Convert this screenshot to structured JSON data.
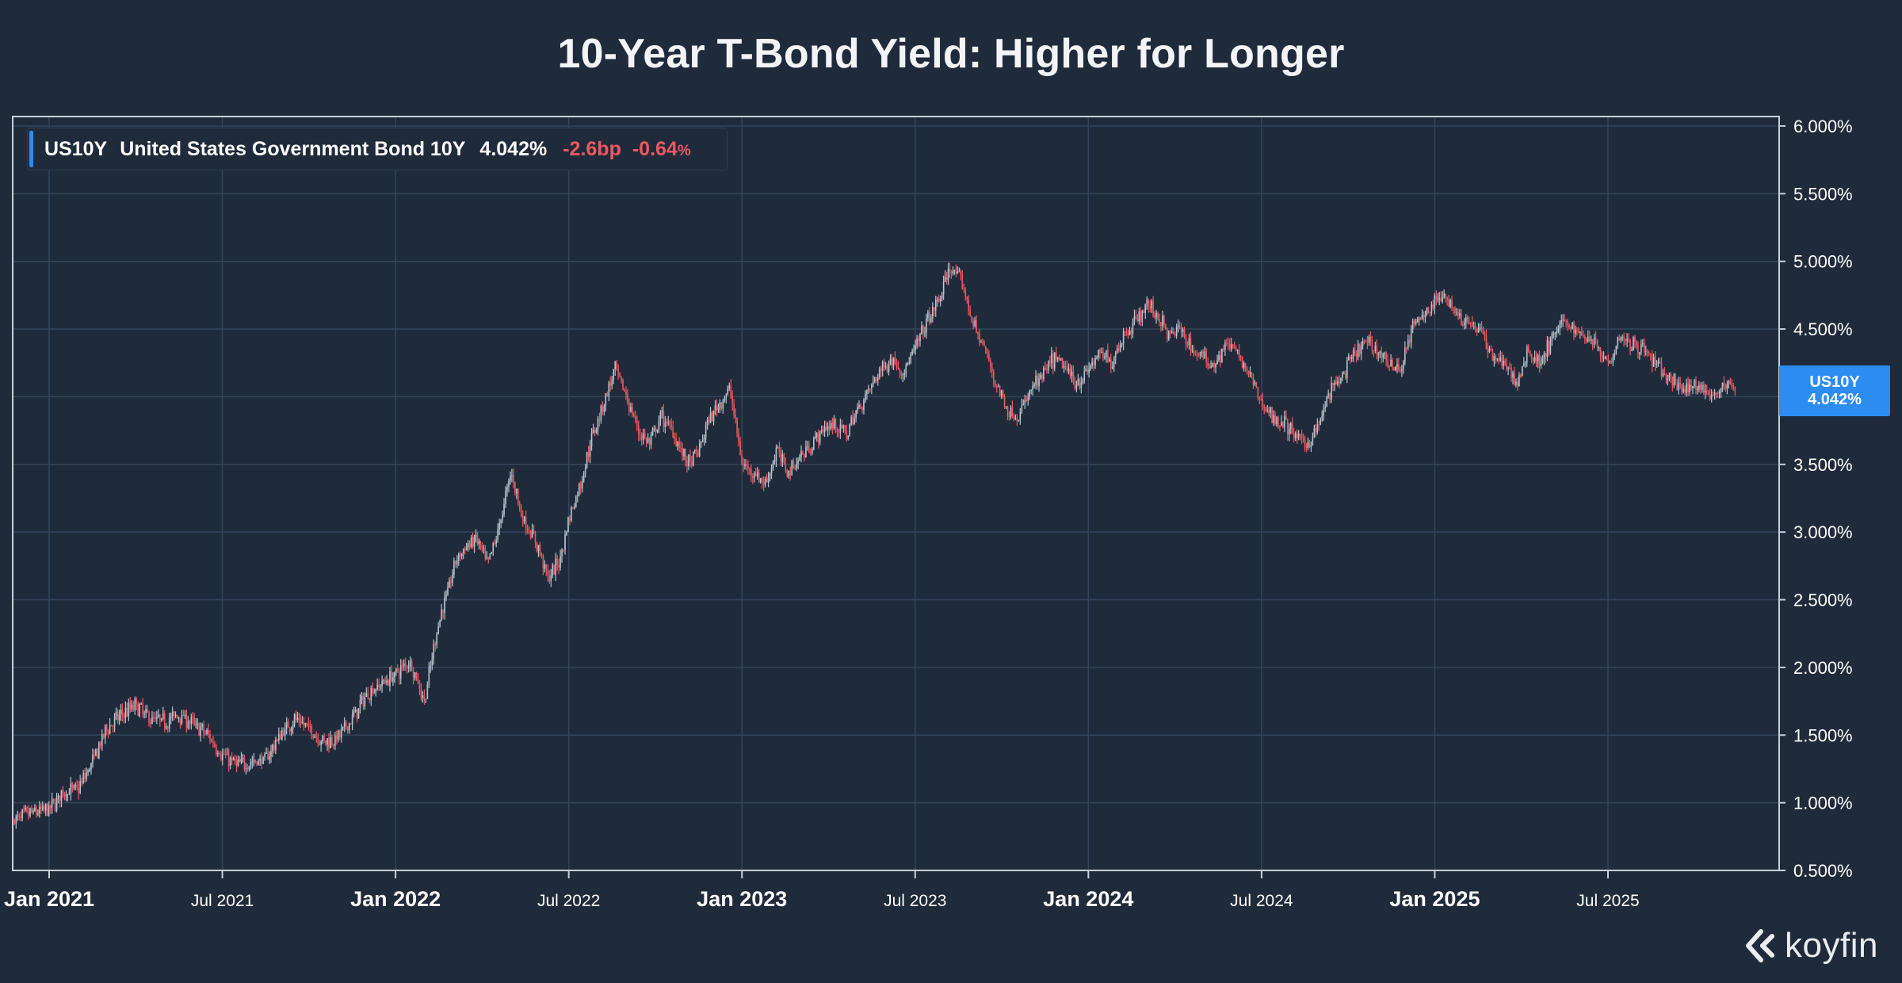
{
  "chart_data": {
    "type": "candlestick",
    "title": "10-Year T-Bond Yield: Higher for Longer",
    "legend": {
      "symbol": "US10Y",
      "name": "United States Government Bond 10Y",
      "value": "4.042%",
      "change_bp": "-2.6bp",
      "change_pct": "-0.64",
      "pct_sign": "%"
    },
    "last_value_label": {
      "symbol": "US10Y",
      "value": "4.042%"
    },
    "y_axis": {
      "ylim": [
        0.5,
        6.0
      ],
      "ticks": [
        6.0,
        5.5,
        5.0,
        4.5,
        4.0,
        3.5,
        3.0,
        2.5,
        2.0,
        1.5,
        1.0,
        0.5
      ],
      "tick_labels": [
        "6.000%",
        "5.500%",
        "5.000%",
        "4.500%",
        "4.000%",
        "3.500%",
        "3.000%",
        "2.500%",
        "2.000%",
        "1.500%",
        "1.000%",
        "0.500%"
      ]
    },
    "x_axis": {
      "range": [
        "Nov 2020",
        "Nov 2025"
      ],
      "ticks": [
        {
          "label": "Jan 2021",
          "month": 2,
          "major": true
        },
        {
          "label": "Jul 2021",
          "month": 8,
          "major": false
        },
        {
          "label": "Jan 2022",
          "month": 14,
          "major": true
        },
        {
          "label": "Jul 2022",
          "month": 20,
          "major": false
        },
        {
          "label": "Jan 2023",
          "month": 26,
          "major": true
        },
        {
          "label": "Jul 2023",
          "month": 32,
          "major": false
        },
        {
          "label": "Jan 2024",
          "month": 38,
          "major": true
        },
        {
          "label": "Jul 2024",
          "month": 44,
          "major": false
        },
        {
          "label": "Jan 2025",
          "month": 50,
          "major": true
        },
        {
          "label": "Jul 2025",
          "month": 56,
          "major": false
        }
      ]
    },
    "series": [
      {
        "name": "US10Y",
        "x_months": [
          0.8,
          1.3,
          2.0,
          2.5,
          3.0,
          3.5,
          4.0,
          4.5,
          5.0,
          5.5,
          6.0,
          6.5,
          7.0,
          7.5,
          8.0,
          8.5,
          9.0,
          9.5,
          10.0,
          10.5,
          11.0,
          11.5,
          12.0,
          12.5,
          13.0,
          13.5,
          14.0,
          14.5,
          15.0,
          15.5,
          15.8,
          16.1,
          16.5,
          16.8,
          17.2,
          17.6,
          18.0,
          18.4,
          18.8,
          19.0,
          19.3,
          19.7,
          20.0,
          20.4,
          20.8,
          21.2,
          21.6,
          22.0,
          22.4,
          22.8,
          23.2,
          23.6,
          24.0,
          24.2,
          24.5,
          24.8,
          25.2,
          25.6,
          26.0,
          26.4,
          26.8,
          27.2,
          27.6,
          28.0,
          28.4,
          28.8,
          29.2,
          29.6,
          30.0,
          30.4,
          30.8,
          31.2,
          31.6,
          32.0,
          32.4,
          32.8,
          33.2,
          33.6,
          34.0,
          34.4,
          34.8,
          35.2,
          35.6,
          36.0,
          36.4,
          36.8,
          37.2,
          37.6,
          38.0,
          38.4,
          38.8,
          39.2,
          39.6,
          40.0,
          40.4,
          40.8,
          41.2,
          41.6,
          42.0,
          42.4,
          42.8,
          43.2,
          43.6,
          44.0,
          44.4,
          44.8,
          45.2,
          45.6,
          46.0,
          46.4,
          46.8,
          47.2,
          47.6,
          48.0,
          48.4,
          48.8,
          49.2,
          49.6,
          50.0,
          50.4,
          50.8,
          51.2,
          51.6,
          52.0,
          52.4,
          52.6,
          52.8,
          53.2,
          53.6,
          54.0,
          54.4,
          54.8,
          55.2,
          55.6,
          56.0,
          56.4,
          56.8,
          57.2,
          57.6,
          58.0,
          58.4,
          58.8,
          59.2,
          59.6,
          60.0,
          60.4
        ],
        "values": [
          0.87,
          0.92,
          0.95,
          1.08,
          1.1,
          1.3,
          1.55,
          1.65,
          1.72,
          1.62,
          1.6,
          1.65,
          1.58,
          1.5,
          1.35,
          1.28,
          1.3,
          1.32,
          1.5,
          1.62,
          1.55,
          1.45,
          1.48,
          1.62,
          1.8,
          1.88,
          1.95,
          2.05,
          1.75,
          2.35,
          2.55,
          2.8,
          2.9,
          2.95,
          2.75,
          3.05,
          3.45,
          3.1,
          2.95,
          2.85,
          2.65,
          2.8,
          3.1,
          3.35,
          3.7,
          3.95,
          4.2,
          4.0,
          3.75,
          3.65,
          3.85,
          3.75,
          3.55,
          3.5,
          3.6,
          3.8,
          3.95,
          4.05,
          3.5,
          3.45,
          3.35,
          3.6,
          3.45,
          3.55,
          3.65,
          3.75,
          3.8,
          3.72,
          3.9,
          4.05,
          4.2,
          4.28,
          4.18,
          4.35,
          4.55,
          4.7,
          4.95,
          4.85,
          4.55,
          4.35,
          4.1,
          3.9,
          3.85,
          4.05,
          4.15,
          4.28,
          4.22,
          4.1,
          4.2,
          4.32,
          4.25,
          4.45,
          4.55,
          4.68,
          4.6,
          4.45,
          4.5,
          4.35,
          4.28,
          4.25,
          4.4,
          4.3,
          4.15,
          3.95,
          3.85,
          3.8,
          3.7,
          3.65,
          3.8,
          4.05,
          4.15,
          4.3,
          4.4,
          4.35,
          4.25,
          4.2,
          4.5,
          4.6,
          4.7,
          4.75,
          4.6,
          4.55,
          4.48,
          4.3,
          4.25,
          4.2,
          4.05,
          4.35,
          4.25,
          4.4,
          4.55,
          4.5,
          4.45,
          4.4,
          4.25,
          4.45,
          4.4,
          4.35,
          4.25,
          4.15,
          4.08,
          4.05,
          4.1,
          3.98,
          4.1,
          4.04
        ],
        "last": 4.042,
        "up_color": "#b9c2cd",
        "down_color": "#f0575f"
      }
    ]
  },
  "colors": {
    "background": "#1f2b3b",
    "grid": "#34445a",
    "frame": "#c8d0da",
    "accent": "#2c8cf0",
    "negative": "#f0575f",
    "text": "#ffffff"
  },
  "branding": {
    "logo_text": "koyfin"
  }
}
